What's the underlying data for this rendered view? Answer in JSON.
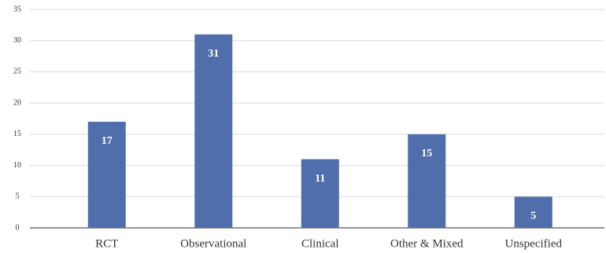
{
  "chart_data": {
    "type": "bar",
    "categories": [
      "RCT",
      "Observational",
      "Clinical",
      "Other & Mixed",
      "Unspecified"
    ],
    "values": [
      17,
      31,
      11,
      15,
      5
    ],
    "color": "#4f6eab",
    "ylim": [
      0,
      35
    ],
    "yticks": [
      0,
      5,
      10,
      15,
      20,
      25,
      30,
      35
    ],
    "grid": true
  }
}
